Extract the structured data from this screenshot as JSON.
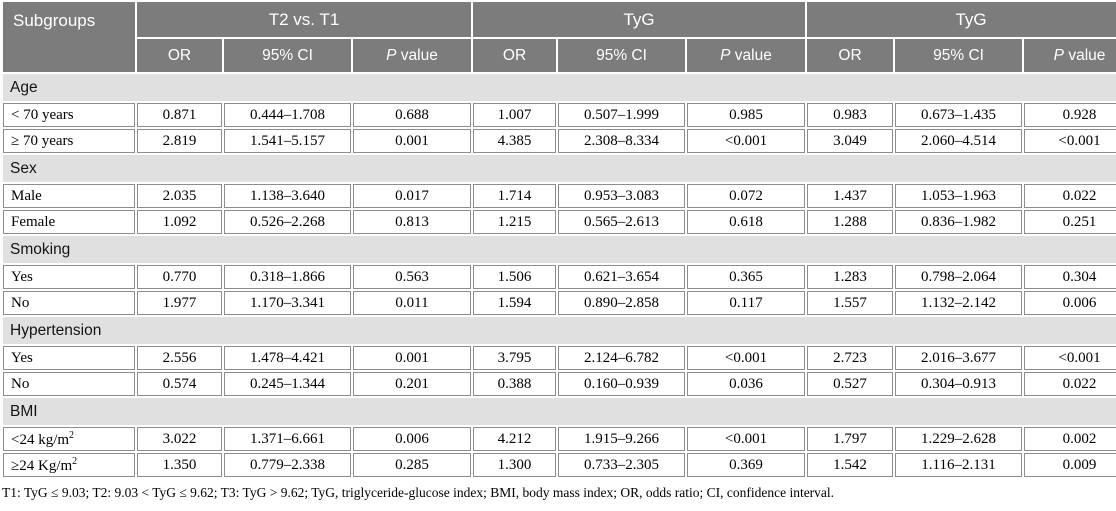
{
  "colors": {
    "header_bg": "#7c7c7c",
    "header_text": "#ffffff",
    "section_bg": "#e0e0e0",
    "cell_border": "#8d8d8d",
    "page_bg": "#ffffff"
  },
  "table": {
    "corner_label": "Subgroups",
    "groups": [
      {
        "label": "T2 vs. T1"
      },
      {
        "label": "TyG"
      },
      {
        "label": "TyG"
      }
    ],
    "sub": {
      "or": "OR",
      "ci": "95% CI",
      "p_italic": "P",
      "p_rest": " value"
    },
    "sections": [
      {
        "name": "Age",
        "rows": [
          {
            "label": "< 70 years",
            "sup": "",
            "values": [
              "0.871",
              "0.444–1.708",
              "0.688",
              "1.007",
              "0.507–1.999",
              "0.985",
              "0.983",
              "0.673–1.435",
              "0.928"
            ]
          },
          {
            "label": "≥ 70 years",
            "sup": "",
            "values": [
              "2.819",
              "1.541–5.157",
              "0.001",
              "4.385",
              "2.308–8.334",
              "<0.001",
              "3.049",
              "2.060–4.514",
              "<0.001"
            ]
          }
        ]
      },
      {
        "name": "Sex",
        "rows": [
          {
            "label": "Male",
            "sup": "",
            "values": [
              "2.035",
              "1.138–3.640",
              "0.017",
              "1.714",
              "0.953–3.083",
              "0.072",
              "1.437",
              "1.053–1.963",
              "0.022"
            ]
          },
          {
            "label": "Female",
            "sup": "",
            "values": [
              "1.092",
              "0.526–2.268",
              "0.813",
              "1.215",
              "0.565–2.613",
              "0.618",
              "1.288",
              "0.836–1.982",
              "0.251"
            ]
          }
        ]
      },
      {
        "name": "Smoking",
        "rows": [
          {
            "label": "Yes",
            "sup": "",
            "values": [
              "0.770",
              "0.318–1.866",
              "0.563",
              "1.506",
              "0.621–3.654",
              "0.365",
              "1.283",
              "0.798–2.064",
              "0.304"
            ]
          },
          {
            "label": "No",
            "sup": "",
            "values": [
              "1.977",
              "1.170–3.341",
              "0.011",
              "1.594",
              "0.890–2.858",
              "0.117",
              "1.557",
              "1.132–2.142",
              "0.006"
            ]
          }
        ]
      },
      {
        "name": "Hypertension",
        "rows": [
          {
            "label": "Yes",
            "sup": "",
            "values": [
              "2.556",
              "1.478–4.421",
              "0.001",
              "3.795",
              "2.124–6.782",
              "<0.001",
              "2.723",
              "2.016–3.677",
              "<0.001"
            ]
          },
          {
            "label": "No",
            "sup": "",
            "values": [
              "0.574",
              "0.245–1.344",
              "0.201",
              "0.388",
              "0.160–0.939",
              "0.036",
              "0.527",
              "0.304–0.913",
              "0.022"
            ]
          }
        ]
      },
      {
        "name": "BMI",
        "rows": [
          {
            "label": "<24 kg/m",
            "sup": "2",
            "values": [
              "3.022",
              "1.371–6.661",
              "0.006",
              "4.212",
              "1.915–9.266",
              "<0.001",
              "1.797",
              "1.229–2.628",
              "0.002"
            ]
          },
          {
            "label": "≥24 Kg/m",
            "sup": "2",
            "values": [
              "1.350",
              "0.779–2.338",
              "0.285",
              "1.300",
              "0.733–2.305",
              "0.369",
              "1.542",
              "1.116–2.131",
              "0.009"
            ]
          }
        ]
      }
    ]
  },
  "footnote": "T1: TyG ≤ 9.03; T2: 9.03 < TyG ≤ 9.62; T3: TyG > 9.62; TyG, triglyceride-glucose index; BMI, body mass index; OR, odds ratio; CI, confidence interval."
}
